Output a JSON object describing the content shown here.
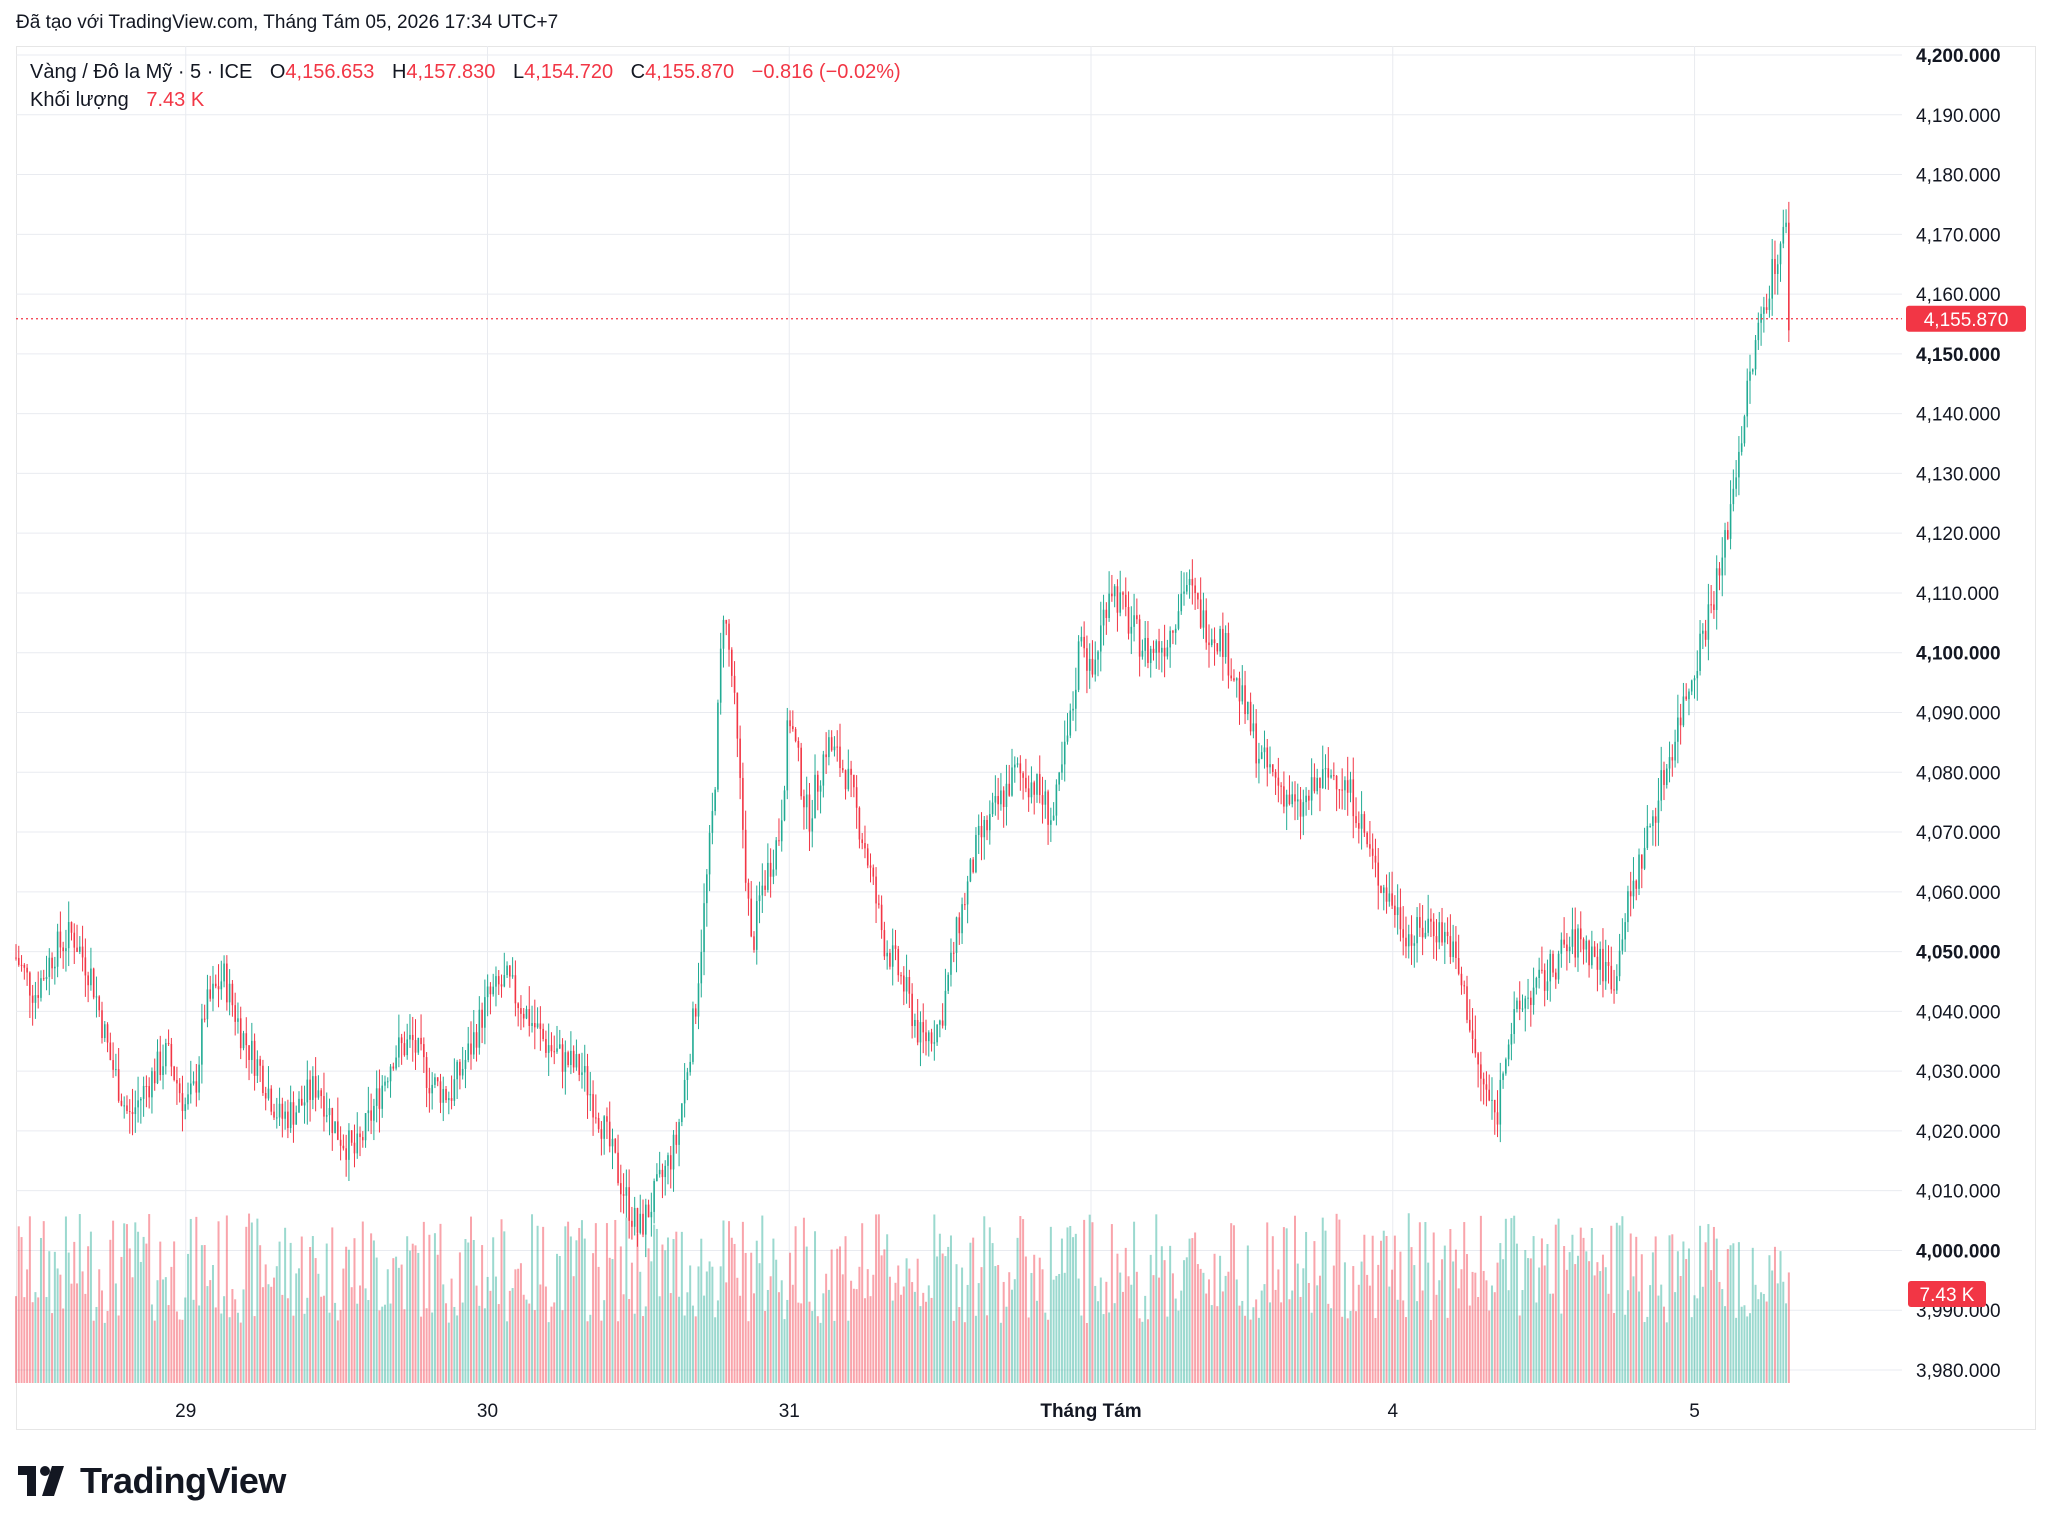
{
  "header": {
    "created_text": "Đã tạo với TradingView.com, Tháng Tám 05, 2026 17:34 UTC+7"
  },
  "legend": {
    "symbol": "Vàng / Đô la Mỹ · 5 · ICE",
    "open_label": "O",
    "open": "4,156.653",
    "high_label": "H",
    "high": "4,157.830",
    "low_label": "L",
    "low": "4,154.720",
    "close_label": "C",
    "close": "4,155.870",
    "change": "−0.816 (−0.02%)",
    "volume_label": "Khối lượng",
    "volume": "7.43 K"
  },
  "brand": {
    "name": "TradingView"
  },
  "colors": {
    "up": "#22ab94",
    "down": "#f23645",
    "grid": "#f0f3fa",
    "text": "#131722"
  },
  "chart_data": {
    "type": "candlestick",
    "interval": "5",
    "y_axis": {
      "min": 3980,
      "max": 4200,
      "ticks": [
        4200,
        4190,
        4180,
        4170,
        4160,
        4150,
        4140,
        4130,
        4120,
        4110,
        4100,
        4090,
        4080,
        4070,
        4060,
        4050,
        4040,
        4030,
        4020,
        4010,
        4000,
        3990,
        3980
      ],
      "tick_labels": [
        "4,200.000",
        "4,190.000",
        "4,180.000",
        "4,170.000",
        "4,160.000",
        "4,150.000",
        "4,140.000",
        "4,130.000",
        "4,120.000",
        "4,110.000",
        "4,100.000",
        "4,090.000",
        "4,080.000",
        "4,070.000",
        "4,060.000",
        "4,050.000",
        "4,040.000",
        "4,030.000",
        "4,020.000",
        "4,010.000",
        "4,000.000",
        "3,990.000",
        "3,980.000"
      ],
      "bold_ticks": [
        "4,200.000",
        "4,150.000",
        "4,100.000",
        "4,050.000",
        "4,000.000"
      ]
    },
    "x_axis": {
      "labels": [
        "29",
        "30",
        "31",
        "Tháng Tám",
        "4",
        "5"
      ],
      "bold_labels": [
        "Tháng Tám"
      ],
      "positions": [
        0.09,
        0.25,
        0.41,
        0.57,
        0.73,
        0.89
      ]
    },
    "last_price": 4155.87,
    "last_price_label": "4,155.870",
    "last_volume_label": "7.43 K",
    "price_path": [
      [
        0.0,
        4049
      ],
      [
        0.01,
        4043
      ],
      [
        0.02,
        4050
      ],
      [
        0.03,
        4053
      ],
      [
        0.04,
        4046
      ],
      [
        0.05,
        4032
      ],
      [
        0.06,
        4022
      ],
      [
        0.07,
        4028
      ],
      [
        0.08,
        4033
      ],
      [
        0.09,
        4024
      ],
      [
        0.095,
        4027
      ],
      [
        0.1,
        4040
      ],
      [
        0.11,
        4046
      ],
      [
        0.12,
        4036
      ],
      [
        0.13,
        4030
      ],
      [
        0.14,
        4022
      ],
      [
        0.15,
        4024
      ],
      [
        0.16,
        4028
      ],
      [
        0.17,
        4020
      ],
      [
        0.18,
        4016
      ],
      [
        0.19,
        4024
      ],
      [
        0.2,
        4033
      ],
      [
        0.21,
        4035
      ],
      [
        0.22,
        4028
      ],
      [
        0.23,
        4026
      ],
      [
        0.24,
        4033
      ],
      [
        0.25,
        4042
      ],
      [
        0.26,
        4045
      ],
      [
        0.27,
        4040
      ],
      [
        0.28,
        4035
      ],
      [
        0.29,
        4032
      ],
      [
        0.3,
        4030
      ],
      [
        0.31,
        4022
      ],
      [
        0.32,
        4012
      ],
      [
        0.33,
        4003
      ],
      [
        0.34,
        4010
      ],
      [
        0.35,
        4018
      ],
      [
        0.36,
        4040
      ],
      [
        0.37,
        4075
      ],
      [
        0.375,
        4108
      ],
      [
        0.38,
        4095
      ],
      [
        0.39,
        4050
      ],
      [
        0.395,
        4060
      ],
      [
        0.405,
        4070
      ],
      [
        0.41,
        4090
      ],
      [
        0.42,
        4072
      ],
      [
        0.43,
        4085
      ],
      [
        0.44,
        4080
      ],
      [
        0.45,
        4068
      ],
      [
        0.46,
        4052
      ],
      [
        0.47,
        4045
      ],
      [
        0.48,
        4035
      ],
      [
        0.49,
        4038
      ],
      [
        0.5,
        4055
      ],
      [
        0.51,
        4068
      ],
      [
        0.52,
        4074
      ],
      [
        0.53,
        4080
      ],
      [
        0.54,
        4078
      ],
      [
        0.55,
        4072
      ],
      [
        0.56,
        4090
      ],
      [
        0.565,
        4105
      ],
      [
        0.57,
        4095
      ],
      [
        0.58,
        4112
      ],
      [
        0.59,
        4105
      ],
      [
        0.6,
        4100
      ],
      [
        0.61,
        4102
      ],
      [
        0.62,
        4112
      ],
      [
        0.63,
        4105
      ],
      [
        0.64,
        4102
      ],
      [
        0.65,
        4092
      ],
      [
        0.66,
        4082
      ],
      [
        0.67,
        4078
      ],
      [
        0.68,
        4073
      ],
      [
        0.69,
        4078
      ],
      [
        0.7,
        4080
      ],
      [
        0.71,
        4075
      ],
      [
        0.72,
        4064
      ],
      [
        0.73,
        4058
      ],
      [
        0.74,
        4052
      ],
      [
        0.75,
        4055
      ],
      [
        0.76,
        4052
      ],
      [
        0.77,
        4040
      ],
      [
        0.775,
        4030
      ],
      [
        0.785,
        4022
      ],
      [
        0.79,
        4035
      ],
      [
        0.8,
        4042
      ],
      [
        0.81,
        4045
      ],
      [
        0.82,
        4050
      ],
      [
        0.83,
        4052
      ],
      [
        0.84,
        4048
      ],
      [
        0.85,
        4045
      ]
    ]
  }
}
